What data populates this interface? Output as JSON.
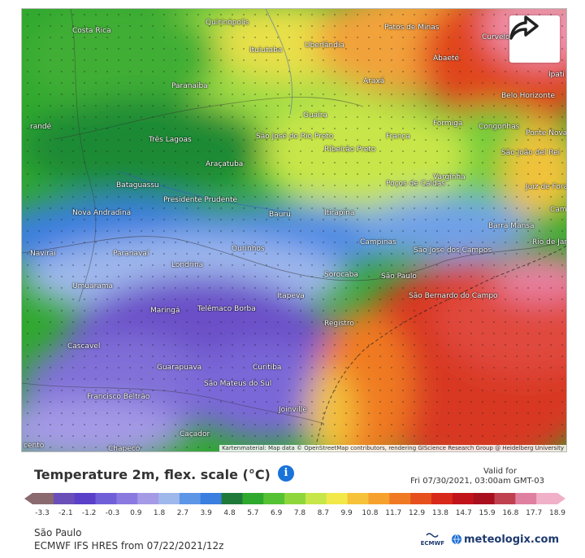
{
  "map": {
    "attribution": "Kartenmaterial: Map data © OpenStreetMap contributors, rendering GIScience Research Group @ Heidelberg University",
    "cities": [
      {
        "name": "Costa Rica"
      },
      {
        "name": "Quirinópolis"
      },
      {
        "name": "Ituiutaba"
      },
      {
        "name": "Uberlândia"
      },
      {
        "name": "Patos de Minas"
      },
      {
        "name": "Curvelo"
      },
      {
        "name": "Abaeté"
      },
      {
        "name": "Ipati"
      },
      {
        "name": "Paranaíba"
      },
      {
        "name": "Araxá"
      },
      {
        "name": "Belo Horizonte"
      },
      {
        "name": "randé"
      },
      {
        "name": "Guaíra"
      },
      {
        "name": "Formiga"
      },
      {
        "name": "Congonhas"
      },
      {
        "name": "Ponte Nova"
      },
      {
        "name": "Três Lagoas"
      },
      {
        "name": "São José do Rio Preto"
      },
      {
        "name": "Franca"
      },
      {
        "name": "Ribeirão Preto"
      },
      {
        "name": "São João del Rei"
      },
      {
        "name": "Araçatuba"
      },
      {
        "name": "Varginha"
      },
      {
        "name": "Poços de Caldas"
      },
      {
        "name": "Juiz de Fora"
      },
      {
        "name": "Bataguassu"
      },
      {
        "name": "Presidente Prudente"
      },
      {
        "name": "Nova Andradina"
      },
      {
        "name": "Bauru"
      },
      {
        "name": "Itirapina"
      },
      {
        "name": "Barra Mansa"
      },
      {
        "name": "Campos"
      },
      {
        "name": "Campinas"
      },
      {
        "name": "São José dos Campos"
      },
      {
        "name": "Rio de Janeiro"
      },
      {
        "name": "Naviraí"
      },
      {
        "name": "Paranavaí"
      },
      {
        "name": "Ourinhos"
      },
      {
        "name": "Londrina"
      },
      {
        "name": "Sorocaba"
      },
      {
        "name": "São Paulo"
      },
      {
        "name": "Umuarama"
      },
      {
        "name": "São Bernardo do Campo"
      },
      {
        "name": "Itapeva"
      },
      {
        "name": "Telêmaco Borba"
      },
      {
        "name": "Maringá"
      },
      {
        "name": "Registro"
      },
      {
        "name": "Cascavel"
      },
      {
        "name": "Guarapuava"
      },
      {
        "name": "Curitiba"
      },
      {
        "name": "São Mateus do Sul"
      },
      {
        "name": "Francisco Beltrão"
      },
      {
        "name": "Joinville"
      },
      {
        "name": "Caçador"
      },
      {
        "name": "Chapecó"
      },
      {
        "name": "cento"
      }
    ]
  },
  "share_icon": "share-arrow-icon",
  "legend": {
    "title": "Temperature 2m, flex. scale (°C)",
    "info_icon": "i",
    "valid_label": "Valid for",
    "valid_time": "Fri 07/30/2021, 03:00am GMT-03",
    "ticks": [
      "-3.3",
      "-2.1",
      "-1.2",
      "-0.3",
      "0.9",
      "1.8",
      "2.7",
      "3.9",
      "4.8",
      "5.7",
      "6.9",
      "7.8",
      "8.7",
      "9.9",
      "10.8",
      "11.7",
      "12.9",
      "13.8",
      "14.7",
      "15.9",
      "16.8",
      "17.7",
      "18.9"
    ],
    "colors": [
      "#8a6a6e",
      "#6b4fb8",
      "#5a3fc8",
      "#7060d8",
      "#8a7ae0",
      "#a49ae6",
      "#9fb8ec",
      "#5d96e6",
      "#3a7ee0",
      "#1f7a3a",
      "#2fa82e",
      "#55c233",
      "#8fd63c",
      "#c6e64a",
      "#f2e84a",
      "#f6c23a",
      "#f6a02e",
      "#f07a24",
      "#e6501c",
      "#d8281a",
      "#c0141a",
      "#a8101e",
      "#c04050",
      "#e080a0",
      "#f0b0c8"
    ]
  },
  "region": "São Paulo",
  "model": "ECMWF IFS HRES from 07/22/2021/12z",
  "logos": {
    "ecmwf": "ECMWF",
    "brand": "meteologix.com"
  }
}
